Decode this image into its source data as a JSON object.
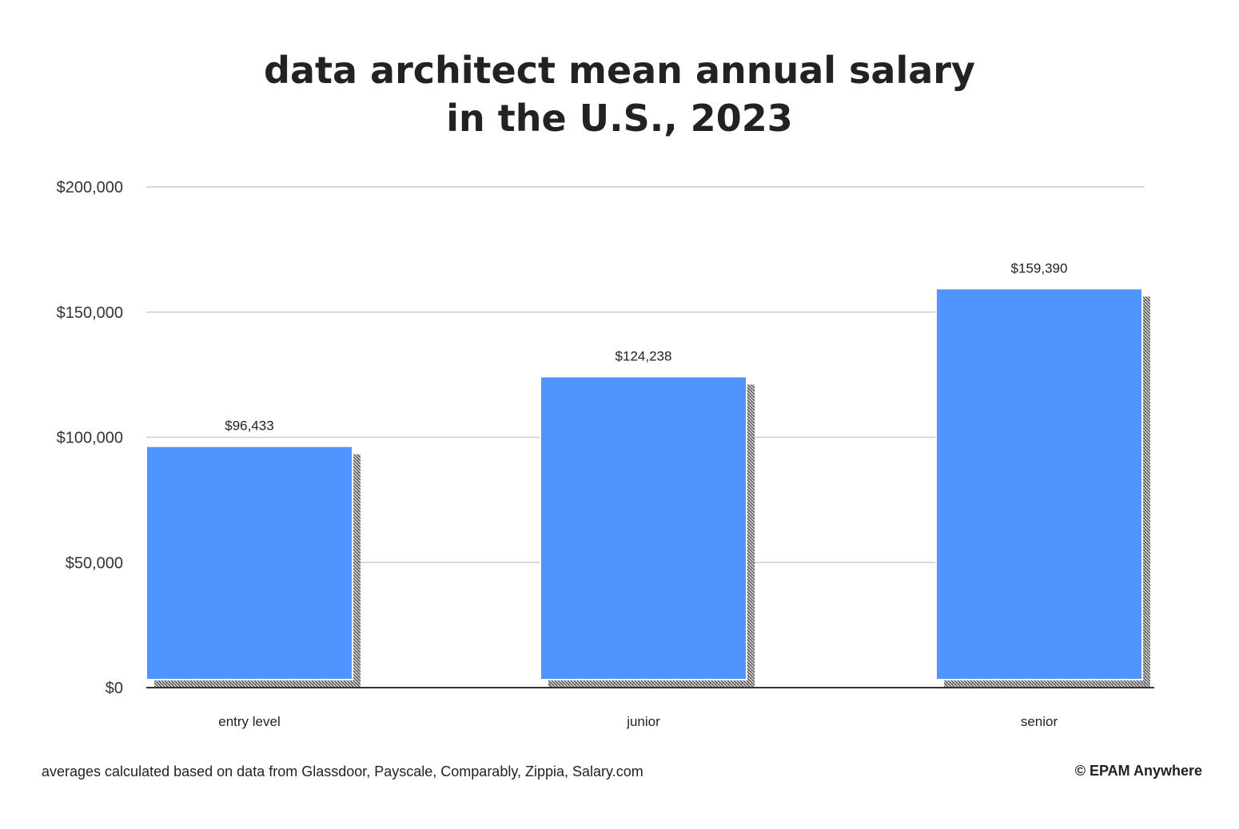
{
  "chart_data": {
    "type": "bar",
    "title_lines": [
      "data architect mean annual salary",
      "in the U.S., 2023"
    ],
    "categories": [
      "entry level",
      "junior",
      "senior"
    ],
    "values": [
      96433,
      124238,
      159390
    ],
    "data_labels": [
      "$96,433",
      "$124,238",
      "$159,390"
    ],
    "ylim": [
      0,
      200000
    ],
    "yticks": [
      0,
      50000,
      100000,
      150000,
      200000
    ],
    "ytick_labels": [
      "$0",
      "$50,000",
      "$100,000",
      "$150,000",
      "$200,000"
    ],
    "xlabel": "",
    "ylabel": "",
    "grid": true,
    "legend": "none",
    "bar_color": "#4f94ff",
    "grid_color": "#cccccc",
    "axis_color": "#333333"
  },
  "footer": {
    "note": "averages calculated based on data from Glassdoor, Payscale, Comparably, Zippia, Salary.com",
    "credit": "© EPAM Anywhere"
  }
}
